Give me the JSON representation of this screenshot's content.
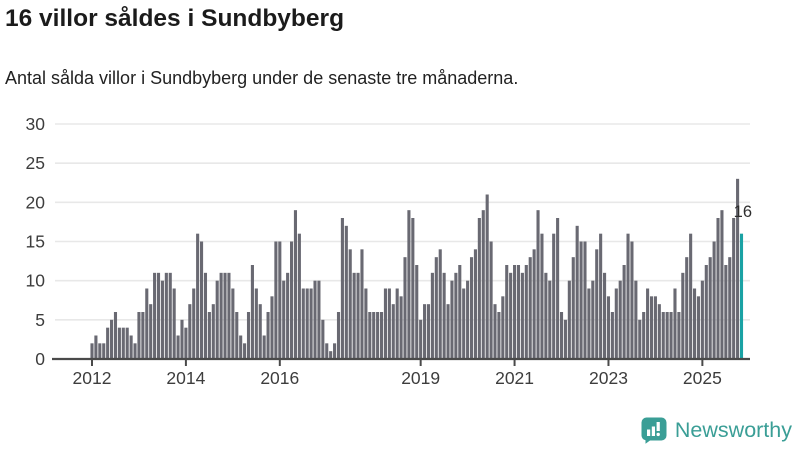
{
  "header": {
    "title": "16 villor såldes i Sundbyberg",
    "subtitle": "Antal sålda villor i Sundbyberg under de senaste tre månaderna."
  },
  "chart_data": {
    "type": "bar",
    "title": "16 villor såldes i Sundbyberg",
    "xlabel": "",
    "ylabel": "",
    "x_start": "2012-01",
    "x_end": "2025-11",
    "x_freq": "monthly",
    "values": [
      2,
      3,
      2,
      2,
      4,
      5,
      6,
      4,
      4,
      4,
      3,
      2,
      6,
      6,
      9,
      7,
      11,
      11,
      10,
      11,
      11,
      9,
      3,
      5,
      4,
      7,
      9,
      16,
      15,
      11,
      6,
      7,
      10,
      11,
      11,
      11,
      9,
      6,
      3,
      2,
      6,
      12,
      9,
      7,
      3,
      6,
      8,
      15,
      15,
      10,
      11,
      15,
      19,
      16,
      9,
      9,
      9,
      10,
      10,
      5,
      2,
      1,
      2,
      6,
      18,
      17,
      14,
      11,
      11,
      14,
      9,
      6,
      6,
      6,
      6,
      9,
      9,
      7,
      9,
      8,
      13,
      19,
      18,
      12,
      5,
      7,
      7,
      11,
      13,
      14,
      11,
      7,
      10,
      11,
      12,
      9,
      10,
      13,
      14,
      18,
      19,
      21,
      15,
      7,
      6,
      8,
      12,
      11,
      12,
      12,
      11,
      12,
      13,
      14,
      19,
      16,
      11,
      10,
      16,
      18,
      6,
      5,
      10,
      13,
      17,
      15,
      15,
      9,
      10,
      14,
      16,
      11,
      8,
      6,
      9,
      10,
      12,
      16,
      15,
      10,
      5,
      6,
      9,
      8,
      8,
      7,
      6,
      6,
      6,
      9,
      6,
      11,
      13,
      16,
      9,
      8,
      10,
      12,
      13,
      15,
      18,
      19,
      12,
      13,
      18,
      23,
      16
    ],
    "highlight_last_bar": true,
    "last_bar_value": 16,
    "annotation_label": "16",
    "ylim": [
      0,
      30
    ],
    "yticks": [
      0,
      5,
      10,
      15,
      20,
      25,
      30
    ],
    "xticks": [
      {
        "label": "2012",
        "month_index": 0
      },
      {
        "label": "2014",
        "month_index": 24
      },
      {
        "label": "2016",
        "month_index": 48
      },
      {
        "label": "2019",
        "month_index": 84
      },
      {
        "label": "2021",
        "month_index": 108
      },
      {
        "label": "2023",
        "month_index": 132
      },
      {
        "label": "2025",
        "month_index": 156
      }
    ],
    "grid": true,
    "legend": "none",
    "colors": {
      "bar": "#696972",
      "highlight": "#1aa2a4",
      "grid": "#e8e8e8",
      "axis": "#4a4a4a",
      "tick_label": "#3d3d3d",
      "annotation": "#2e2e2e"
    }
  },
  "footer": {
    "brand": "Newsworthy",
    "brand_color": "#3a9e96",
    "logo_icon": "bar-chart-speech-bubble-icon"
  }
}
